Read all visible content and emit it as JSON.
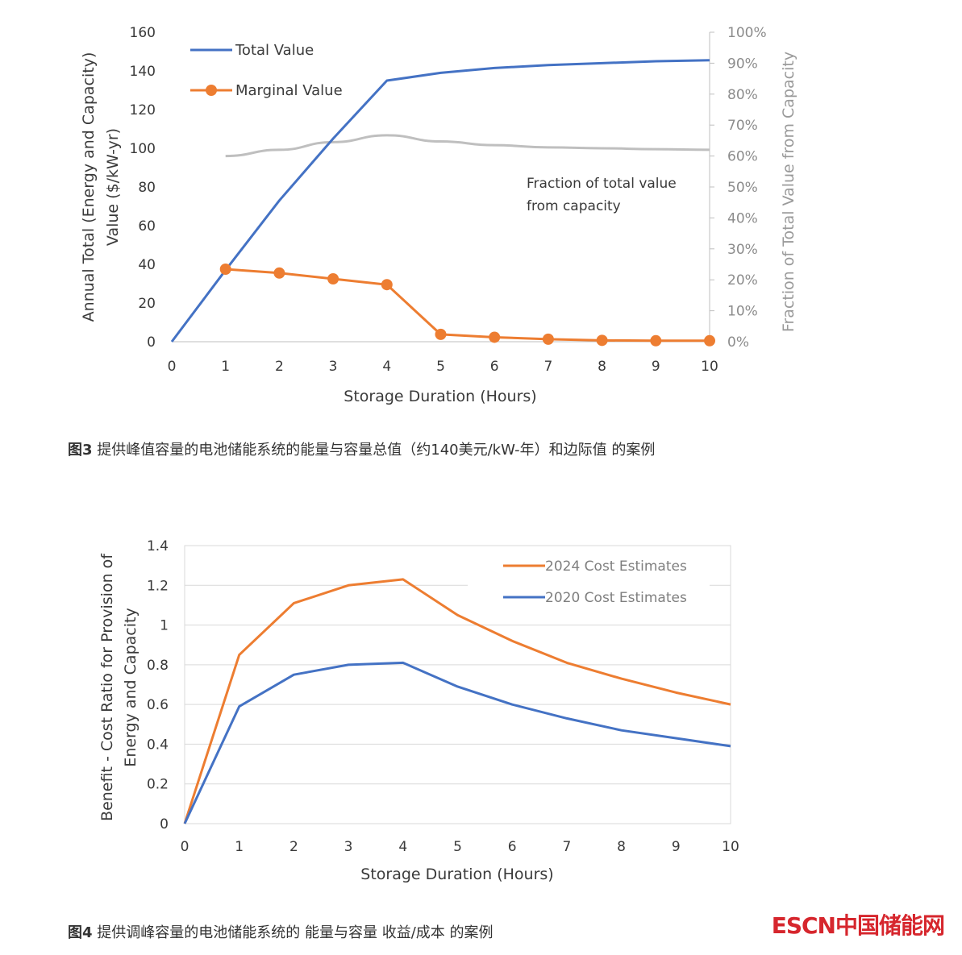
{
  "chart_data": [
    {
      "type": "line",
      "xlabel": "Storage Duration (Hours)",
      "ylabel_line1": "Annual Total (Energy and Capacity)",
      "ylabel_line2": "Value ($/kW-yr)",
      "y2label": "Fraction of Total Value from Capacity",
      "xlim": [
        0,
        10
      ],
      "ylim": [
        0,
        160
      ],
      "y2lim": [
        0,
        100
      ],
      "x_ticks": [
        "0",
        "1",
        "2",
        "3",
        "4",
        "5",
        "6",
        "7",
        "8",
        "9",
        "10"
      ],
      "y_ticks": [
        "0",
        "20",
        "40",
        "60",
        "80",
        "100",
        "120",
        "140",
        "160"
      ],
      "y2_ticks": [
        "0%",
        "10%",
        "20%",
        "30%",
        "40%",
        "50%",
        "60%",
        "70%",
        "80%",
        "90%",
        "100%"
      ],
      "annotation_line1": "Fraction of total value",
      "annotation_line2": "from capacity",
      "series": [
        {
          "name": "Total Value",
          "axis": "left",
          "color": "#4472c4",
          "x": [
            0,
            1,
            2,
            3,
            4,
            5,
            6,
            7,
            8,
            9,
            10
          ],
          "values": [
            0,
            37,
            73,
            105,
            135,
            139,
            141.5,
            143,
            144,
            145,
            145.5
          ]
        },
        {
          "name": "Marginal Value",
          "axis": "left",
          "color": "#ed7d31",
          "markers": true,
          "x": [
            1,
            2,
            3,
            4,
            5,
            6,
            7,
            8,
            9,
            10
          ],
          "values": [
            37.5,
            35.5,
            32.5,
            29.5,
            3.8,
            2.3,
            1.3,
            0.7,
            0.5,
            0.5
          ]
        },
        {
          "name": "Fraction of total value from capacity",
          "axis": "right",
          "color": "#bfbfbf",
          "x": [
            1,
            2,
            3,
            4,
            5,
            6,
            7,
            8,
            9,
            10
          ],
          "values": [
            60,
            62,
            64.5,
            66.7,
            64.7,
            63.5,
            62.8,
            62.5,
            62.2,
            62
          ]
        }
      ]
    },
    {
      "type": "line",
      "xlabel": "Storage Duration (Hours)",
      "ylabel_line1": "Benefit - Cost Ratio for Provision of",
      "ylabel_line2": "Energy and Capacity",
      "xlim": [
        0,
        10
      ],
      "ylim": [
        0,
        1.4
      ],
      "x_ticks": [
        "0",
        "1",
        "2",
        "3",
        "4",
        "5",
        "6",
        "7",
        "8",
        "9",
        "10"
      ],
      "y_ticks": [
        "0",
        "0.2",
        "0.4",
        "0.6",
        "0.8",
        "1",
        "1.2",
        "1.4"
      ],
      "series": [
        {
          "name": "2024 Cost Estimates",
          "color": "#ed7d31",
          "x": [
            0,
            1,
            2,
            3,
            4,
            5,
            6,
            7,
            8,
            9,
            10
          ],
          "values": [
            0,
            0.85,
            1.11,
            1.2,
            1.23,
            1.05,
            0.92,
            0.81,
            0.73,
            0.66,
            0.6
          ]
        },
        {
          "name": "2020 Cost Estimates",
          "color": "#4472c4",
          "x": [
            0,
            1,
            2,
            3,
            4,
            5,
            6,
            7,
            8,
            9,
            10
          ],
          "values": [
            0,
            0.59,
            0.75,
            0.8,
            0.81,
            0.69,
            0.6,
            0.53,
            0.47,
            0.43,
            0.39
          ]
        }
      ]
    }
  ],
  "captions": {
    "fig3_label": "图3",
    "fig3_text": " 提供峰值容量的电池储能系统的能量与容量总值（约140美元/kW-年）和边际值 的案例",
    "fig4_label": "图4",
    "fig4_text": " 提供调峰容量的电池储能系统的 能量与容量 收益/成本 的案例"
  },
  "watermark": {
    "text": "ESCN中国储能网",
    "color": "#d6262d"
  }
}
